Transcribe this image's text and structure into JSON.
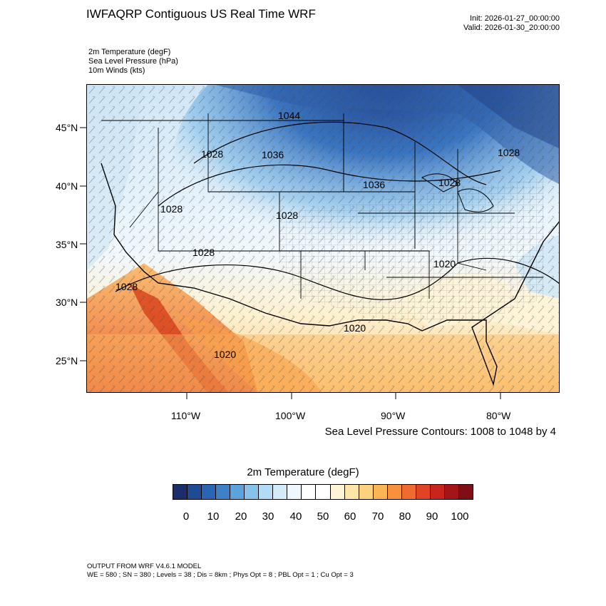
{
  "header": {
    "title": "IWFAQRP Contiguous US Real Time WRF",
    "init": "Init: 2026-01-27_00:00:00",
    "valid": "Valid: 2026-01-30_20:00:00"
  },
  "fields": [
    "2m Temperature   (degF)",
    "Sea Level Pressure   (hPa)",
    "10m Winds   (kts)"
  ],
  "map": {
    "lat_labels": [
      "45°N",
      "40°N",
      "35°N",
      "30°N",
      "25°N"
    ],
    "lon_labels": [
      "110°W",
      "100°W",
      "90°W",
      "80°W"
    ],
    "pressure_labels": [
      "1044",
      "1036",
      "1028",
      "1028",
      "1028",
      "1028",
      "1036",
      "1028",
      "1028",
      "1020",
      "1028",
      "1020",
      "1020"
    ]
  },
  "contour_note": "Sea Level Pressure Contours: 1008 to 1048 by 4",
  "colorbar": {
    "title": "2m Temperature  (degF)",
    "labels": [
      "0",
      "10",
      "20",
      "30",
      "40",
      "50",
      "60",
      "70",
      "80",
      "90",
      "100"
    ],
    "colors": [
      "#1b2e6b",
      "#1f4a94",
      "#2a64b5",
      "#3d82c8",
      "#5ba3dc",
      "#86c2ea",
      "#b0dcf5",
      "#d2ecfa",
      "#eef7fd",
      "#ffffff",
      "#ffffff",
      "#fff4d6",
      "#fee6a8",
      "#fdd27e",
      "#fbb555",
      "#f7913d",
      "#f06b2f",
      "#e04426",
      "#c8251f",
      "#a31519",
      "#7f0f16"
    ]
  },
  "footer": {
    "line1": "OUTPUT FROM WRF V4.6.1 MODEL",
    "line2": "WE = 580 ; SN = 380 ; Levels = 38 ; Dis = 8km ; Phys Opt = 8 ; PBL Opt = 1 ; Cu Opt = 3"
  }
}
